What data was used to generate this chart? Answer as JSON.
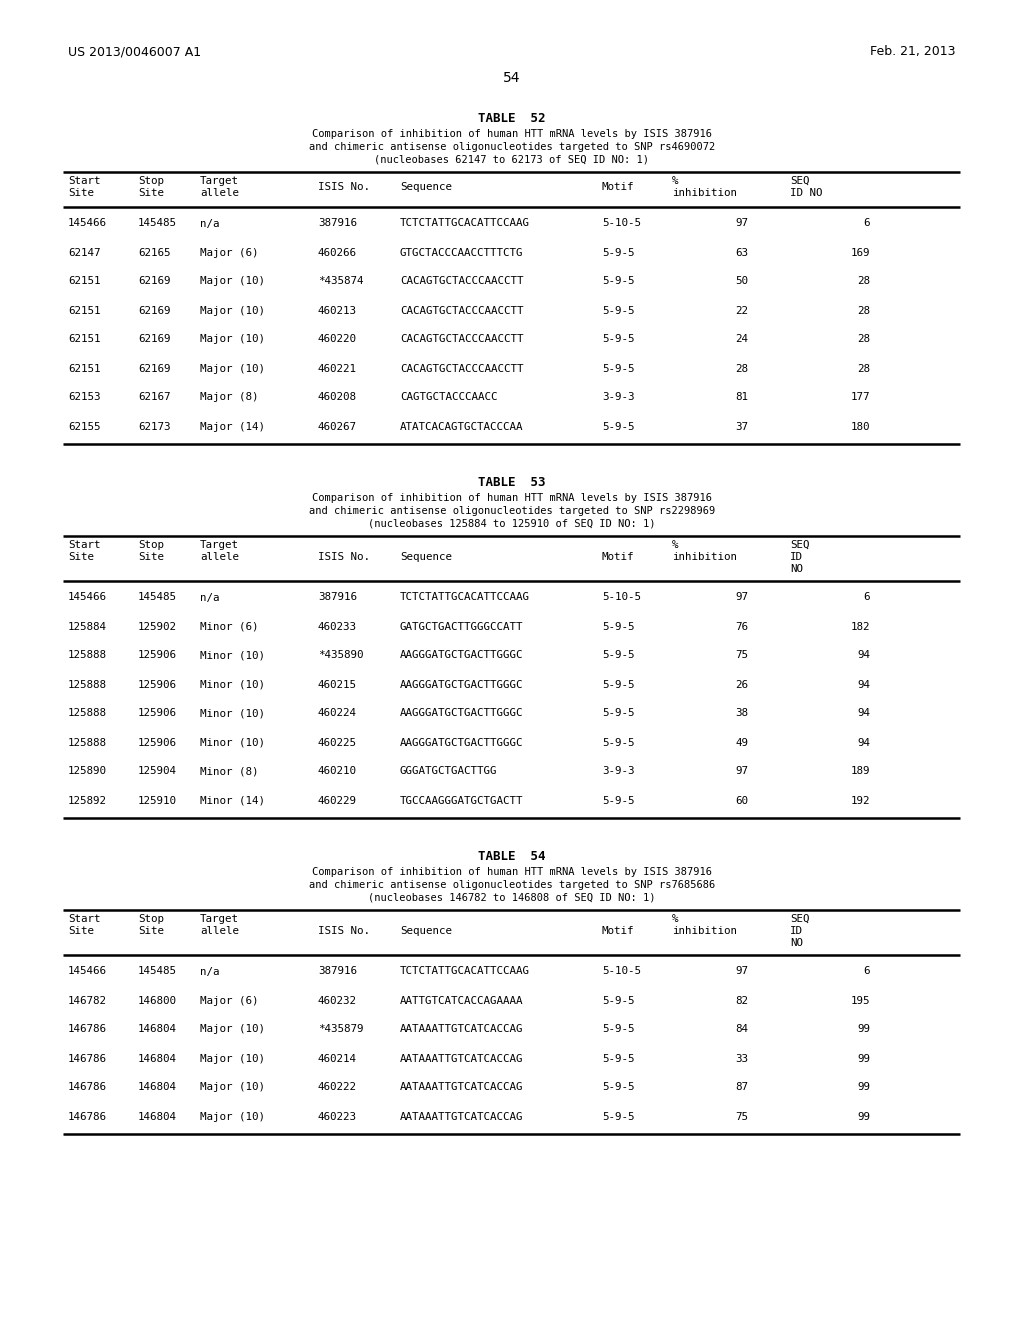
{
  "header_left": "US 2013/0046007 A1",
  "header_right": "Feb. 21, 2013",
  "page_number": "54",
  "background_color": "#ffffff",
  "text_color": "#000000",
  "table52": {
    "title": "TABLE  52",
    "caption_lines": [
      "Comparison of inhibition of human HTT mRNA levels by ISIS 387916",
      "and chimeric antisense oligonucleotides targeted to SNP rs4690072",
      "(nucleobases 62147 to 62173 of SEQ ID NO: 1)"
    ],
    "header_seq_lines": [
      "SEQ",
      "ID NO"
    ],
    "rows": [
      [
        "145466",
        "145485",
        "n/a",
        "387916",
        "TCTCTATTGCACATTCCAAG",
        "5-10-5",
        "97",
        "6"
      ],
      [
        "62147",
        "62165",
        "Major (6)",
        "460266",
        "GTGCTACCCAACCTTTCTG",
        "5-9-5",
        "63",
        "169"
      ],
      [
        "62151",
        "62169",
        "Major (10)",
        "*435874",
        "CACAGTGCTACCCAACCTT",
        "5-9-5",
        "50",
        "28"
      ],
      [
        "62151",
        "62169",
        "Major (10)",
        "460213",
        "CACAGTGCTACCCAACCTT",
        "5-9-5",
        "22",
        "28"
      ],
      [
        "62151",
        "62169",
        "Major (10)",
        "460220",
        "CACAGTGCTACCCAACCTT",
        "5-9-5",
        "24",
        "28"
      ],
      [
        "62151",
        "62169",
        "Major (10)",
        "460221",
        "CACAGTGCTACCCAACCTT",
        "5-9-5",
        "28",
        "28"
      ],
      [
        "62153",
        "62167",
        "Major (8)",
        "460208",
        "CAGTGCTACCCAACC",
        "3-9-3",
        "81",
        "177"
      ],
      [
        "62155",
        "62173",
        "Major (14)",
        "460267",
        "ATATCACAGTGCTACCCAA",
        "5-9-5",
        "37",
        "180"
      ]
    ]
  },
  "table53": {
    "title": "TABLE  53",
    "caption_lines": [
      "Comparison of inhibition of human HTT mRNA levels by ISIS 387916",
      "and chimeric antisense oligonucleotides targeted to SNP rs2298969",
      "(nucleobases 125884 to 125910 of SEQ ID NO: 1)"
    ],
    "header_seq_lines": [
      "SEQ",
      "ID",
      "NO"
    ],
    "rows": [
      [
        "145466",
        "145485",
        "n/a",
        "387916",
        "TCTCTATTGCACATTCCAAG",
        "5-10-5",
        "97",
        "6"
      ],
      [
        "125884",
        "125902",
        "Minor (6)",
        "460233",
        "GATGCTGACTTGGGCCATT",
        "5-9-5",
        "76",
        "182"
      ],
      [
        "125888",
        "125906",
        "Minor (10)",
        "*435890",
        "AAGGGATGCTGACTTGGGC",
        "5-9-5",
        "75",
        "94"
      ],
      [
        "125888",
        "125906",
        "Minor (10)",
        "460215",
        "AAGGGATGCTGACTTGGGC",
        "5-9-5",
        "26",
        "94"
      ],
      [
        "125888",
        "125906",
        "Minor (10)",
        "460224",
        "AAGGGATGCTGACTTGGGC",
        "5-9-5",
        "38",
        "94"
      ],
      [
        "125888",
        "125906",
        "Minor (10)",
        "460225",
        "AAGGGATGCTGACTTGGGC",
        "5-9-5",
        "49",
        "94"
      ],
      [
        "125890",
        "125904",
        "Minor (8)",
        "460210",
        "GGGATGCTGACTTGG",
        "3-9-3",
        "97",
        "189"
      ],
      [
        "125892",
        "125910",
        "Minor (14)",
        "460229",
        "TGCCAAGGGATGCTGACTT",
        "5-9-5",
        "60",
        "192"
      ]
    ]
  },
  "table54": {
    "title": "TABLE  54",
    "caption_lines": [
      "Comparison of inhibition of human HTT mRNA levels by ISIS 387916",
      "and chimeric antisense oligonucleotides targeted to SNP rs7685686",
      "(nucleobases 146782 to 146808 of SEQ ID NO: 1)"
    ],
    "header_seq_lines": [
      "SEQ",
      "ID",
      "NO"
    ],
    "rows": [
      [
        "145466",
        "145485",
        "n/a",
        "387916",
        "TCTCTATTGCACATTCCAAG",
        "5-10-5",
        "97",
        "6"
      ],
      [
        "146782",
        "146800",
        "Major (6)",
        "460232",
        "AATTGTCATCACCAGAAAA",
        "5-9-5",
        "82",
        "195"
      ],
      [
        "146786",
        "146804",
        "Major (10)",
        "*435879",
        "AATAAATTGTCATCACCAG",
        "5-9-5",
        "84",
        "99"
      ],
      [
        "146786",
        "146804",
        "Major (10)",
        "460214",
        "AATAAATTGTCATCACCAG",
        "5-9-5",
        "33",
        "99"
      ],
      [
        "146786",
        "146804",
        "Major (10)",
        "460222",
        "AATAAATTGTCATCACCAG",
        "5-9-5",
        "87",
        "99"
      ],
      [
        "146786",
        "146804",
        "Major (10)",
        "460223",
        "AATAAATTGTCATCACCAG",
        "5-9-5",
        "75",
        "99"
      ]
    ]
  }
}
